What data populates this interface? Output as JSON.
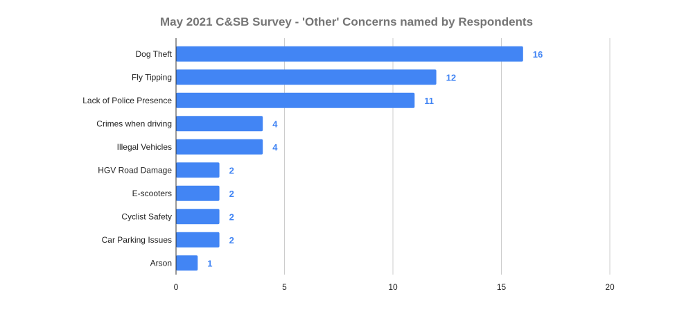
{
  "chart_data": {
    "type": "bar",
    "orientation": "horizontal",
    "title": "May 2021 C&SB Survey - 'Other' Concerns named by Respondents",
    "xlabel": "",
    "ylabel": "",
    "categories": [
      "Dog Theft",
      "Fly Tipping",
      "Lack of Police Presence",
      "Crimes when driving",
      "Illegal Vehicles",
      "HGV Road Damage",
      "E-scooters",
      "Cyclist Safety",
      "Car Parking Issues",
      "Arson"
    ],
    "values": [
      16,
      12,
      11,
      4,
      4,
      2,
      2,
      2,
      2,
      1
    ],
    "xlim": [
      0,
      20
    ],
    "x_ticks": [
      0,
      5,
      10,
      15,
      20
    ],
    "grid": "vertical",
    "legend": "none",
    "data_labels": true,
    "bar_color": "#4285f4",
    "data_label_color": "#4285f4",
    "title_color": "#757575",
    "gridline_color": "#cccccc",
    "axis_color": "#333333"
  }
}
